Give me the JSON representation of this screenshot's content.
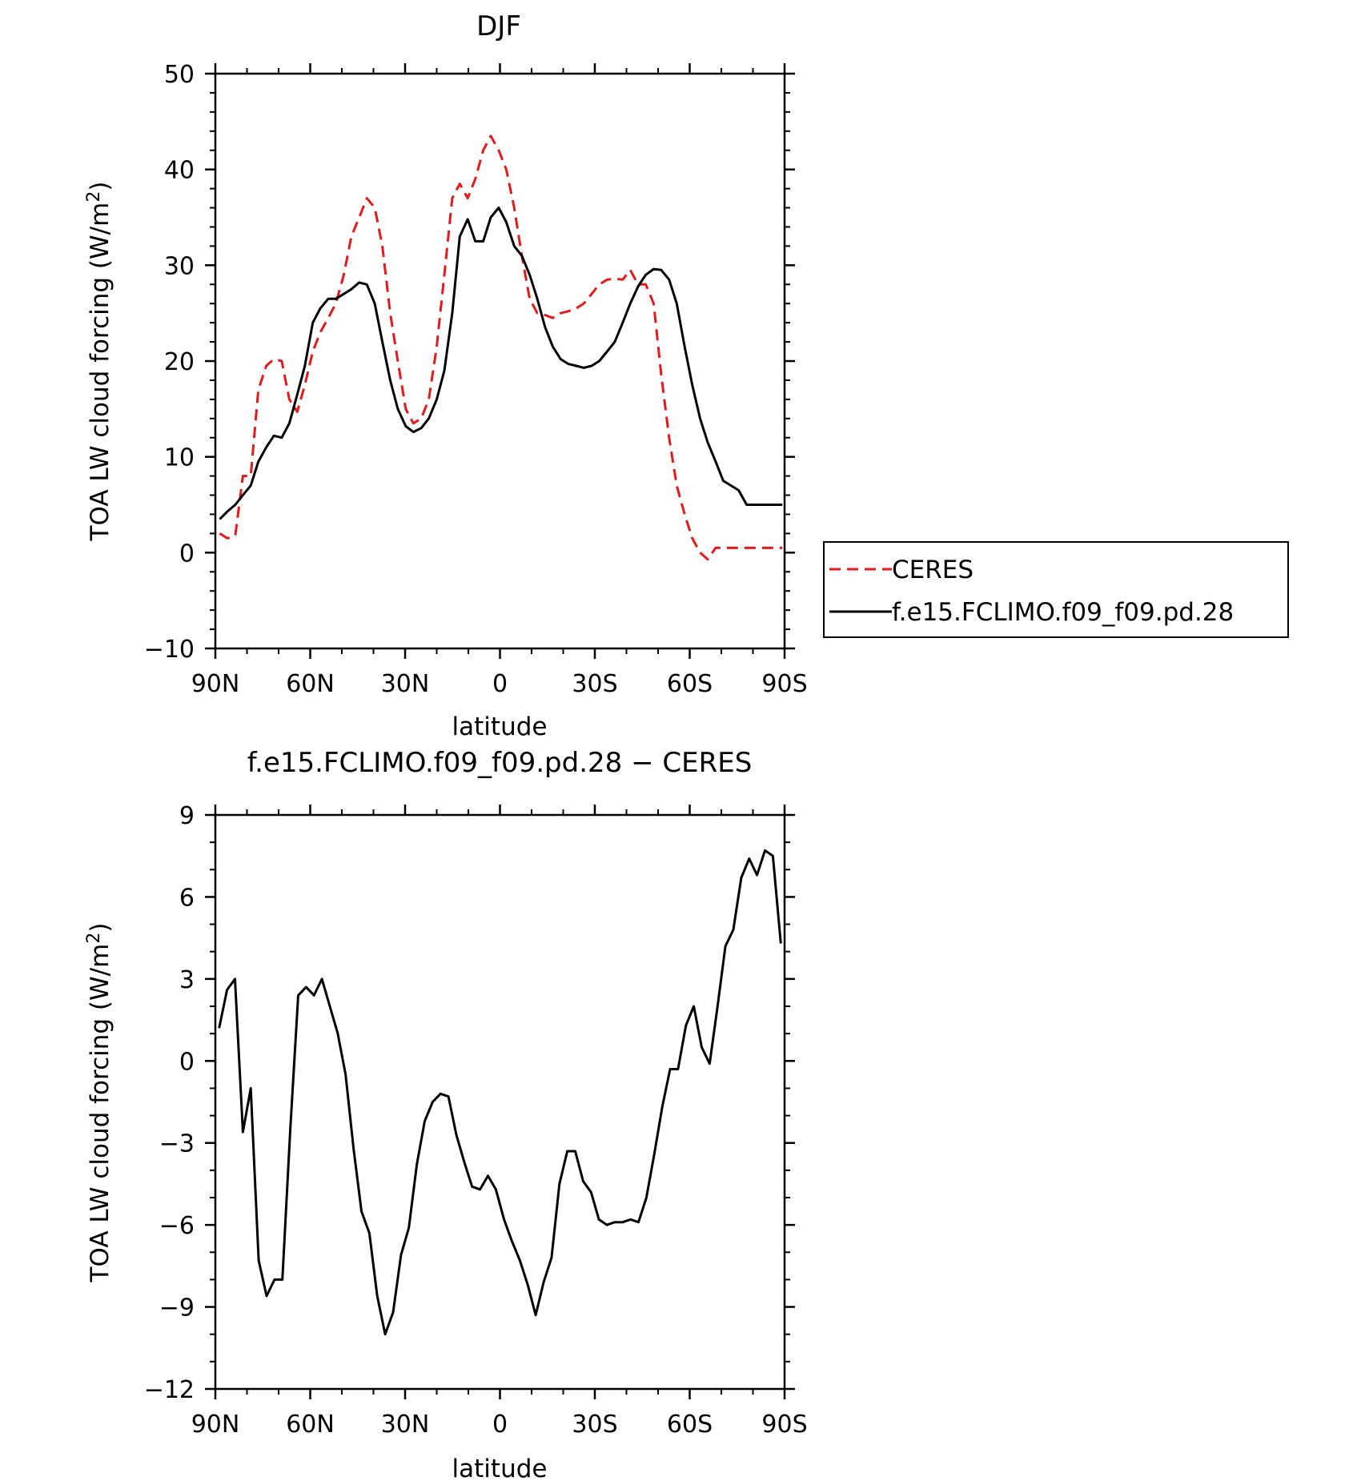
{
  "chart_data": [
    {
      "type": "line",
      "title": "DJF",
      "xlabel": "latitude",
      "ylabel_parts": {
        "main": "TOA LW cloud forcing (W/m",
        "sup": "2",
        "end": ")"
      },
      "xlim": [
        90,
        -90
      ],
      "ylim": [
        -10,
        50
      ],
      "xticks": [
        {
          "value": 90,
          "label": "90N"
        },
        {
          "value": 60,
          "label": "60N"
        },
        {
          "value": 30,
          "label": "30N"
        },
        {
          "value": 0,
          "label": "0"
        },
        {
          "value": -30,
          "label": "30S"
        },
        {
          "value": -60,
          "label": "60S"
        },
        {
          "value": -90,
          "label": "90S"
        }
      ],
      "yticks": [
        {
          "value": 50,
          "label": "50"
        },
        {
          "value": 40,
          "label": "40"
        },
        {
          "value": 30,
          "label": "30"
        },
        {
          "value": 20,
          "label": "20"
        },
        {
          "value": 10,
          "label": "10"
        },
        {
          "value": 0,
          "label": "0"
        },
        {
          "value": -10,
          "label": "−10"
        }
      ],
      "x": [
        88.6,
        86.2,
        83.7,
        81.3,
        78.8,
        76.4,
        73.9,
        71.5,
        69.0,
        66.6,
        64.1,
        61.7,
        59.2,
        56.8,
        54.3,
        51.9,
        49.4,
        47.0,
        44.5,
        42.1,
        39.6,
        37.2,
        34.7,
        32.3,
        29.8,
        27.4,
        24.9,
        22.5,
        20.0,
        17.6,
        15.1,
        12.7,
        10.2,
        7.8,
        5.3,
        2.9,
        0.4,
        -2.0,
        -4.5,
        -6.9,
        -9.4,
        -11.8,
        -14.3,
        -16.7,
        -19.2,
        -21.6,
        -24.1,
        -26.5,
        -29.0,
        -31.4,
        -33.9,
        -36.3,
        -38.8,
        -41.2,
        -43.7,
        -46.1,
        -48.6,
        -51.0,
        -53.5,
        -55.9,
        -58.4,
        -60.8,
        -63.3,
        -65.7,
        -68.2,
        -70.6,
        -73.1,
        -75.5,
        -78.0,
        -80.4,
        -82.9,
        -85.3,
        -87.8,
        -89.3
      ],
      "series": [
        {
          "name": "CERES",
          "color": "#e31a1c",
          "dash": "dashed",
          "values": [
            2.0,
            1.5,
            1.8,
            8.0,
            8.0,
            17.0,
            19.5,
            20.2,
            20.0,
            16.0,
            14.7,
            17.5,
            21.0,
            23.0,
            24.5,
            26.0,
            29.0,
            33.0,
            35.0,
            37.0,
            36.0,
            32.0,
            25.0,
            20.0,
            15.0,
            13.5,
            14.0,
            16.0,
            21.5,
            29.0,
            37.0,
            38.5,
            37.0,
            39.0,
            42.0,
            43.5,
            42.0,
            40.0,
            36.0,
            31.0,
            26.5,
            25.0,
            24.8,
            24.5,
            25.0,
            25.2,
            25.5,
            26.0,
            27.0,
            28.0,
            28.5,
            28.6,
            28.5,
            29.5,
            28.0,
            28.0,
            26.0,
            18.5,
            12.0,
            7.0,
            4.0,
            1.5,
            0.0,
            -0.7,
            0.5,
            0.5,
            0.5,
            0.5,
            0.5,
            0.5,
            0.5,
            0.5,
            0.5,
            0.5
          ]
        },
        {
          "name": "f.e15.FCLIMO.f09_f09.pd.28",
          "color": "#000000",
          "dash": "solid",
          "values": [
            3.5,
            4.3,
            5.0,
            6.0,
            7.0,
            9.5,
            11.0,
            12.2,
            12.0,
            13.5,
            16.5,
            19.5,
            24.0,
            25.5,
            26.5,
            26.5,
            27.0,
            27.5,
            28.2,
            28.0,
            26.0,
            22.0,
            18.0,
            15.0,
            13.2,
            12.6,
            13.0,
            14.0,
            16.0,
            19.0,
            25.0,
            33.0,
            34.8,
            32.5,
            32.5,
            35.0,
            36.0,
            34.5,
            32.0,
            31.0,
            29.0,
            26.5,
            23.5,
            21.5,
            20.2,
            19.7,
            19.5,
            19.3,
            19.5,
            20.0,
            21.0,
            22.0,
            24.0,
            26.0,
            27.8,
            29.0,
            29.6,
            29.5,
            28.5,
            26.0,
            21.5,
            17.5,
            14.0,
            11.5,
            9.5,
            7.5,
            7.0,
            6.5,
            5.0,
            5.0,
            5.0,
            5.0,
            5.0,
            5.0
          ]
        }
      ],
      "legend": {
        "position": "right",
        "entries": [
          {
            "label": "CERES",
            "color": "#e31a1c",
            "dash": "dashed"
          },
          {
            "label": "f.e15.FCLIMO.f09_f09.pd.28",
            "color": "#000000",
            "dash": "solid"
          }
        ]
      }
    },
    {
      "type": "line",
      "title": "f.e15.FCLIMO.f09_f09.pd.28 − CERES",
      "xlabel": "latitude",
      "ylabel_parts": {
        "main": "TOA LW cloud forcing (W/m",
        "sup": "2",
        "end": ")"
      },
      "xlim": [
        90,
        -90
      ],
      "ylim": [
        -12,
        9
      ],
      "xticks": [
        {
          "value": 90,
          "label": "90N"
        },
        {
          "value": 60,
          "label": "60N"
        },
        {
          "value": 30,
          "label": "30N"
        },
        {
          "value": 0,
          "label": "0"
        },
        {
          "value": -30,
          "label": "30S"
        },
        {
          "value": -60,
          "label": "60S"
        },
        {
          "value": -90,
          "label": "90S"
        }
      ],
      "yticks": [
        {
          "value": 9,
          "label": "9"
        },
        {
          "value": 6,
          "label": "6"
        },
        {
          "value": 3,
          "label": "3"
        },
        {
          "value": 0,
          "label": "0"
        },
        {
          "value": -3,
          "label": "−3"
        },
        {
          "value": -6,
          "label": "−6"
        },
        {
          "value": -9,
          "label": "−9"
        },
        {
          "value": -12,
          "label": "−12"
        }
      ],
      "x": [
        88.8,
        86.3,
        83.8,
        81.3,
        78.8,
        76.3,
        73.8,
        71.3,
        68.8,
        66.3,
        63.8,
        61.3,
        58.8,
        56.3,
        53.8,
        51.3,
        48.8,
        46.3,
        43.8,
        41.3,
        38.8,
        36.3,
        33.8,
        31.3,
        28.8,
        26.3,
        23.8,
        21.3,
        18.8,
        16.3,
        13.8,
        11.3,
        8.8,
        6.3,
        3.8,
        1.3,
        -1.3,
        -3.8,
        -6.3,
        -8.8,
        -11.3,
        -13.8,
        -16.3,
        -18.8,
        -21.3,
        -23.8,
        -26.3,
        -28.8,
        -31.3,
        -33.8,
        -36.3,
        -38.8,
        -41.3,
        -43.8,
        -46.3,
        -48.8,
        -51.3,
        -53.8,
        -56.3,
        -58.8,
        -61.3,
        -63.8,
        -66.3,
        -68.8,
        -71.3,
        -73.8,
        -76.3,
        -78.8,
        -81.3,
        -83.8,
        -86.3,
        -88.8
      ],
      "series": [
        {
          "name": "f.e15.FCLIMO.f09_f09.pd.28 − CERES",
          "color": "#000000",
          "dash": "solid",
          "values": [
            1.2,
            2.6,
            3.0,
            -2.6,
            -1.0,
            -7.3,
            -8.6,
            -8.0,
            -8.0,
            -2.5,
            2.4,
            2.7,
            2.4,
            3.0,
            2.0,
            1.0,
            -0.5,
            -3.2,
            -5.5,
            -6.3,
            -8.6,
            -10.0,
            -9.2,
            -7.1,
            -6.1,
            -3.8,
            -2.2,
            -1.5,
            -1.2,
            -1.3,
            -2.7,
            -3.7,
            -4.6,
            -4.7,
            -4.2,
            -4.7,
            -5.8,
            -6.6,
            -7.3,
            -8.2,
            -9.3,
            -8.1,
            -7.2,
            -4.5,
            -3.3,
            -3.3,
            -4.4,
            -4.8,
            -5.8,
            -6.0,
            -5.9,
            -5.9,
            -5.8,
            -5.9,
            -5.0,
            -3.4,
            -1.7,
            -0.3,
            -0.3,
            1.3,
            2.0,
            0.5,
            -0.1,
            2.0,
            4.2,
            4.8,
            6.7,
            7.4,
            6.8,
            7.7,
            7.5,
            4.3
          ]
        }
      ]
    }
  ]
}
